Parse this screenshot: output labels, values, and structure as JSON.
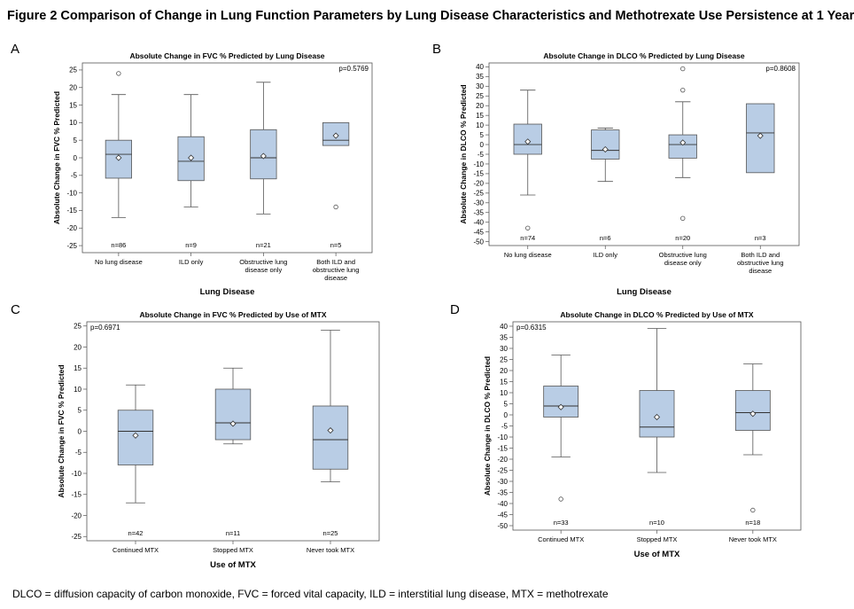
{
  "figure": {
    "title": "Figure 2 Comparison of Change in Lung Function Parameters by Lung Disease Characteristics and Methotrexate Use Persistence at 1 Year",
    "footnote": "DLCO = diffusion capacity of carbon monoxide, FVC = forced vital capacity, ILD = interstitial lung disease, MTX = methotrexate"
  },
  "chart_data": [
    {
      "letter": "A",
      "type": "box",
      "title": "Absolute Change in FVC % Predicted by Lung Disease",
      "xlabel": "Lung Disease",
      "ylabel": "Absolute Change in FVC % Predicted",
      "ylim": [
        -27,
        27
      ],
      "yticks": [
        -25,
        -20,
        -15,
        -10,
        -5,
        0,
        5,
        10,
        15,
        20,
        25
      ],
      "pvalue": "p=0.5769",
      "pvalue_position": "top-right",
      "box_fill": "#b9cde5",
      "categories": [
        {
          "lines": [
            "No lung disease"
          ],
          "n": "n=86",
          "min": -17,
          "q1": -5.8,
          "median": 1,
          "q3": 5,
          "max": 18,
          "mean": 0,
          "outliers": [
            24
          ]
        },
        {
          "lines": [
            "ILD only"
          ],
          "n": "n=9",
          "min": -14,
          "q1": -6.5,
          "median": -1,
          "q3": 6,
          "max": 18,
          "mean": 0,
          "outliers": []
        },
        {
          "lines": [
            "Obstructive lung",
            "disease only"
          ],
          "n": "n=21",
          "min": -16,
          "q1": -6,
          "median": 0,
          "q3": 8,
          "max": 21.5,
          "mean": 0.5,
          "outliers": []
        },
        {
          "lines": [
            "Both ILD and",
            "obstructive lung",
            "disease"
          ],
          "n": "n=5",
          "min": null,
          "q1": 3.5,
          "median": 5,
          "q3": 10,
          "max": null,
          "mean": 6.3,
          "outliers": [
            -14
          ]
        }
      ]
    },
    {
      "letter": "B",
      "type": "box",
      "title": "Absolute Change in DLCO % Predicted by Lung Disease",
      "xlabel": "Lung Disease",
      "ylabel": "Absolute Change in DLCO % Predicted",
      "ylim": [
        -52,
        42
      ],
      "yticks": [
        -50,
        -45,
        -40,
        -35,
        -30,
        -25,
        -20,
        -15,
        -10,
        -5,
        0,
        5,
        10,
        15,
        20,
        25,
        30,
        35,
        40
      ],
      "pvalue": "p=0.8608",
      "pvalue_position": "top-right",
      "box_fill": "#b9cde5",
      "categories": [
        {
          "lines": [
            "No lung disease"
          ],
          "n": "n=74",
          "min": -26,
          "q1": -5,
          "median": 0,
          "q3": 10.5,
          "max": 28,
          "mean": 1.5,
          "outliers": [
            -43
          ]
        },
        {
          "lines": [
            "ILD only"
          ],
          "n": "n=6",
          "min": -19,
          "q1": -7.5,
          "median": -3,
          "q3": 7.5,
          "max": 8.5,
          "mean": -2.5,
          "outliers": []
        },
        {
          "lines": [
            "Obstructive lung",
            "disease only"
          ],
          "n": "n=20",
          "min": -17,
          "q1": -7,
          "median": 0,
          "q3": 5,
          "max": 22,
          "mean": 1,
          "outliers": [
            39,
            28,
            -38
          ]
        },
        {
          "lines": [
            "Both ILD and",
            "obstructive lung",
            "disease"
          ],
          "n": "n=3",
          "min": null,
          "q1": -14.5,
          "median": 6,
          "q3": 21,
          "max": null,
          "mean": 4.5,
          "outliers": []
        }
      ]
    },
    {
      "letter": "C",
      "type": "box",
      "title": "Absolute Change in FVC % Predicted by Use of MTX",
      "xlabel": "Use of MTX",
      "ylabel": "Absolute Change in FVC % Predicted",
      "ylim": [
        -26,
        26
      ],
      "yticks": [
        -25,
        -20,
        -15,
        -10,
        -5,
        0,
        5,
        10,
        15,
        20,
        25
      ],
      "pvalue": "p=0.6971",
      "pvalue_position": "top-left",
      "box_fill": "#b9cde5",
      "categories": [
        {
          "lines": [
            "Continued MTX"
          ],
          "n": "n=42",
          "min": -17,
          "q1": -8,
          "median": 0,
          "q3": 5,
          "max": 11,
          "mean": -1,
          "outliers": []
        },
        {
          "lines": [
            "Stopped MTX"
          ],
          "n": "n=11",
          "min": -3,
          "q1": -2,
          "median": 2,
          "q3": 10,
          "max": 15,
          "mean": 1.8,
          "outliers": []
        },
        {
          "lines": [
            "Never took MTX"
          ],
          "n": "n=25",
          "min": -12,
          "q1": -9,
          "median": -2,
          "q3": 6,
          "max": 24,
          "mean": 0.2,
          "outliers": []
        }
      ]
    },
    {
      "letter": "D",
      "type": "box",
      "title": "Absolute Change in DLCO % Predicted by Use of MTX",
      "xlabel": "Use of MTX",
      "ylabel": "Absolute Change in DLCO % Predicted",
      "ylim": [
        -52,
        42
      ],
      "yticks": [
        -50,
        -45,
        -40,
        -35,
        -30,
        -25,
        -20,
        -15,
        -10,
        -5,
        0,
        5,
        10,
        15,
        20,
        25,
        30,
        35,
        40
      ],
      "pvalue": "p=0.6315",
      "pvalue_position": "top-left",
      "box_fill": "#b9cde5",
      "categories": [
        {
          "lines": [
            "Continued MTX"
          ],
          "n": "n=33",
          "min": -19,
          "q1": -1,
          "median": 4,
          "q3": 13,
          "max": 27,
          "mean": 3.5,
          "outliers": [
            -38
          ]
        },
        {
          "lines": [
            "Stopped MTX"
          ],
          "n": "n=10",
          "min": -26,
          "q1": -10,
          "median": -5.5,
          "q3": 11,
          "max": 39,
          "mean": -1,
          "outliers": []
        },
        {
          "lines": [
            "Never took MTX"
          ],
          "n": "n=18",
          "min": -18,
          "q1": -7,
          "median": 1,
          "q3": 11,
          "max": 23,
          "mean": 0.5,
          "outliers": [
            -43
          ]
        }
      ]
    }
  ]
}
